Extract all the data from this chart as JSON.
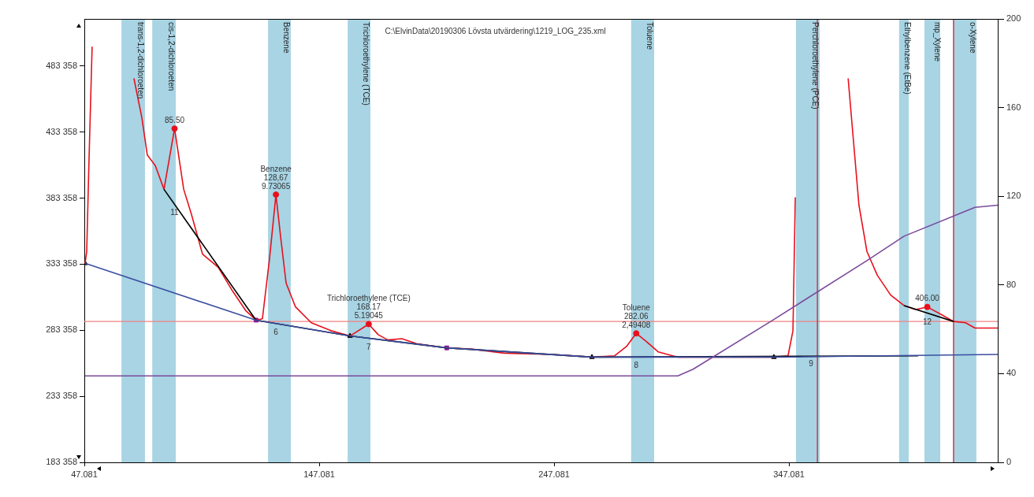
{
  "chart_data": {
    "type": "line",
    "xlim": [
      47.081,
      436
    ],
    "xticks": [
      47.081,
      147.081,
      247.081,
      347.081
    ],
    "ylim": [
      183358,
      519000
    ],
    "yticks": [
      {
        "value": 183358,
        "label": "183 358"
      },
      {
        "value": 233358,
        "label": "233 358"
      },
      {
        "value": 283358,
        "label": "283 358"
      },
      {
        "value": 333358,
        "label": "333 358"
      },
      {
        "value": 383358,
        "label": "383 358"
      },
      {
        "value": 433358,
        "label": "433 358"
      },
      {
        "value": 483358,
        "label": "483 358"
      }
    ],
    "y2lim": [
      0,
      200
    ],
    "y2ticks": [
      0,
      40,
      80,
      120,
      160,
      200
    ],
    "grid": false,
    "legend": false,
    "series": [
      {
        "color": "#7a4a9a",
        "axis": "y2",
        "marker": "none",
        "x": [
          47.4,
          299.8,
          306.3,
          340.0,
          380.3,
          396.1,
          426.3,
          436
        ],
        "values": [
          39,
          39,
          42,
          64,
          91,
          102,
          115,
          116
        ]
      },
      {
        "color": "#3a4fa0",
        "marker": "none",
        "x": [
          47.4,
          120.2,
          160.2,
          201.4,
          263.2,
          340.7,
          436
        ],
        "values": [
          334000,
          291000,
          279000,
          270000,
          263000,
          263000,
          265000
        ]
      },
      {
        "color": "#000000",
        "marker": "none",
        "x": [
          81.0,
          120.2,
          160.2,
          201.4,
          263.2,
          402.1,
          400,
          396.1,
          417.2
        ],
        "values": [
          390000,
          291000,
          279000,
          270000,
          263000,
          264000,
          null,
          302000,
          290000
        ]
      },
      {
        "color": "#e8101c",
        "marker": "none",
        "x": [
          47.4,
          48.1,
          49.1,
          50.4,
          51.1,
          60,
          64.2,
          68.2,
          71.6,
          73.9,
          77.3,
          81.0,
          85.5,
          89.4,
          92.7,
          97.4,
          104.1,
          110.2,
          115.9,
          120.2,
          122.9,
          125.9,
          128.67,
          130.6,
          133.0,
          137.0,
          143.7,
          152.1,
          160.2,
          168.17,
          172.2,
          176.3,
          182.3,
          189.0,
          201.4,
          212.5,
          225.9,
          246.1,
          263.2,
          272.9,
          277.9,
          282.06,
          286.3,
          291.4,
          299.8,
          340.7,
          346.7,
          348.8,
          349.8,
          350.8,
          360,
          370.2,
          372.3,
          374.6,
          376.9,
          380.3,
          384.7,
          390.4,
          396.1,
          401.1,
          406.0,
          412.2,
          417.2,
          422.3,
          426.3,
          430.6,
          436
        ],
        "values": [
          334000,
          343000,
          414000,
          498000,
          null,
          null,
          null,
          474000,
          444000,
          416000,
          408000,
          390000,
          436000,
          390000,
          371000,
          341000,
          331000,
          313000,
          298000,
          291000,
          292000,
          337000,
          386000,
          355000,
          319000,
          301000,
          289000,
          283000,
          279000,
          288000,
          280000,
          276000,
          277000,
          273000,
          270000,
          269000,
          266000,
          265000,
          263000,
          264000,
          271000,
          281000,
          275000,
          267000,
          263000,
          263000,
          264000,
          283000,
          384000,
          null,
          null,
          null,
          474000,
          426000,
          378000,
          343000,
          325000,
          310000,
          302000,
          299000,
          301000,
          295000,
          290000,
          289000,
          285000,
          285000,
          285000
        ]
      },
      {
        "type": "scatter",
        "color": "#000000",
        "marker": "triangle",
        "x": [
          47.4,
          160.2,
          263.2,
          340.7
        ],
        "values": [
          334000,
          279000,
          263000,
          263000
        ]
      },
      {
        "type": "scatter",
        "color": "#8b1a9a",
        "marker": "square",
        "x": [
          120.2,
          201.4
        ],
        "values": [
          291000,
          270000
        ]
      },
      {
        "type": "scatter",
        "color": "#e8101c",
        "marker": "circle",
        "x": [
          85.5,
          128.67,
          168.17,
          282.06,
          406.0
        ],
        "values": [
          436000,
          386000,
          288000,
          281000,
          301000
        ]
      }
    ],
    "bands": [
      {
        "axis": "x",
        "from": 62.9,
        "to": 72.9,
        "label": "trans-1,2-dichloroeten",
        "color": "#a8d4e4"
      },
      {
        "axis": "x",
        "from": 76.0,
        "to": 86.0,
        "label": "cis-1,2-dichloroeten",
        "color": "#a8d4e4"
      },
      {
        "axis": "x",
        "from": 125.3,
        "to": 135.0,
        "label": "Benzene",
        "color": "#a8d4e4"
      },
      {
        "axis": "x",
        "from": 159.2,
        "to": 168.9,
        "label": "Trichloroethylene (TCE)",
        "color": "#a8d4e4"
      },
      {
        "axis": "x",
        "from": 279.9,
        "to": 289.7,
        "label": "Toluene",
        "color": "#a8d4e4"
      },
      {
        "axis": "x",
        "from": 350.1,
        "to": 360.2,
        "label": "Perchloroethylene (PCE)",
        "color": "#a8d4e4"
      },
      {
        "axis": "x",
        "from": 394.0,
        "to": 398.1,
        "label": "Ethylbenzene (EtBe)",
        "color": "#a8d4e4"
      },
      {
        "axis": "x",
        "from": 404.8,
        "to": 411.5,
        "label": "mp_Xylene",
        "color": "#a8d4e4"
      },
      {
        "axis": "x",
        "from": 417.5,
        "to": 426.9,
        "label": "o-Xylene",
        "color": "#a8d4e4"
      }
    ],
    "ref_lines": [
      {
        "axis": "y",
        "value": 290000,
        "color": "#f08080"
      },
      {
        "axis": "x",
        "value": 359.2,
        "color": "#e8101c"
      },
      {
        "axis": "x",
        "value": 417.2,
        "color": "#a00020"
      }
    ],
    "annotations": [
      "C:\\ElvinData\\20190306 Lövsta utvärdering\\1219_LOG_235.xml",
      {
        "text": "85.50",
        "x": 85.5,
        "y": 436000
      },
      {
        "text": "Benzene\n128,67\n9.73065",
        "x": 128.67,
        "y": 386000
      },
      {
        "text": "Trichloroethylene (TCE)\n168.17\n5.19045",
        "x": 168.17,
        "y": 288000
      },
      {
        "text": "Toluene\n282.06\n2,49408",
        "x": 282.06,
        "y": 281000
      },
      {
        "text": "406.00",
        "x": 406.0,
        "y": 301000
      },
      {
        "text": "11",
        "x": 85.5,
        "y": 379000
      },
      {
        "text": "6",
        "x": 128.67,
        "y": 288000
      },
      {
        "text": "7",
        "x": 168.17,
        "y": 277000
      },
      {
        "text": "8",
        "x": 282.06,
        "y": 263000
      },
      {
        "text": "9",
        "x": 356.5,
        "y": 264000
      },
      {
        "text": "12",
        "x": 406.0,
        "y": 296000
      }
    ]
  }
}
